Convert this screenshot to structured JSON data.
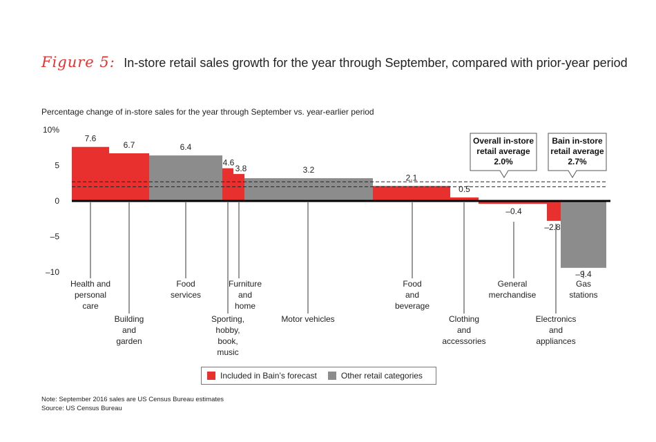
{
  "figure": {
    "label": "Figure 5:",
    "title": "In-store retail sales growth for the year through September, compared with prior-year period"
  },
  "subtitle": "Percentage change of in-store sales for the year through September vs. year-earlier period",
  "colors": {
    "forecast": "#e8312f",
    "other": "#8c8c8c",
    "axis": "#000000",
    "text": "#222222"
  },
  "chart_data": {
    "type": "bar",
    "ylim": [
      -10,
      10
    ],
    "yticks": [
      10,
      5,
      0,
      -5,
      -10
    ],
    "ytick_labels": [
      "10%",
      "5",
      "0",
      "–5",
      "–10"
    ],
    "categories": [
      {
        "name": "Health and personal care",
        "label_lines": [
          "Health and",
          "personal",
          "care"
        ],
        "value": 7.6,
        "value_label": "7.6",
        "group": "forecast"
      },
      {
        "name": "Building and garden",
        "label_lines": [
          "Building",
          "and",
          "garden"
        ],
        "value": 6.7,
        "value_label": "6.7",
        "group": "forecast"
      },
      {
        "name": "Food services",
        "label_lines": [
          "Food",
          "services"
        ],
        "value": 6.4,
        "value_label": "6.4",
        "group": "other"
      },
      {
        "name": "Sporting, hobby, book, music",
        "label_lines": [
          "Sporting,",
          "hobby,",
          "book,",
          "music"
        ],
        "value": 4.6,
        "value_label": "4.6",
        "group": "forecast"
      },
      {
        "name": "Furniture and home",
        "label_lines": [
          "Furniture",
          "and",
          "home"
        ],
        "value": 3.8,
        "value_label": "3.8",
        "group": "forecast"
      },
      {
        "name": "Motor vehicles",
        "label_lines": [
          "Motor vehicles"
        ],
        "value": 3.2,
        "value_label": "3.2",
        "group": "other"
      },
      {
        "name": "Food and beverage",
        "label_lines": [
          "Food",
          "and",
          "beverage"
        ],
        "value": 2.1,
        "value_label": "2.1",
        "group": "forecast"
      },
      {
        "name": "Clothing and accessories",
        "label_lines": [
          "Clothing",
          "and",
          "accessories"
        ],
        "value": 0.5,
        "value_label": "0.5",
        "group": "forecast"
      },
      {
        "name": "General merchandise",
        "label_lines": [
          "General",
          "merchandise"
        ],
        "value": -0.4,
        "value_label": "–0.4",
        "group": "forecast"
      },
      {
        "name": "Electronics and appliances",
        "label_lines": [
          "Electronics",
          "and",
          "appliances"
        ],
        "value": -2.8,
        "value_label": "–2.8",
        "group": "forecast"
      },
      {
        "name": "Gas stations",
        "label_lines": [
          "Gas",
          "stations"
        ],
        "value": -9.4,
        "value_label": "–9.4",
        "group": "other"
      }
    ],
    "reference_lines": [
      {
        "name": "Overall in-store retail average",
        "value": 2.0,
        "label_lines": [
          "Overall in-store",
          "retail average",
          "2.0%"
        ]
      },
      {
        "name": "Bain in-store retail average",
        "value": 2.7,
        "label_lines": [
          "Bain in-store",
          "retail average",
          "2.7%"
        ]
      }
    ],
    "legend": [
      {
        "label": "Included in Bain’s forecast",
        "group": "forecast"
      },
      {
        "label": "Other retail categories",
        "group": "other"
      }
    ]
  },
  "notes": {
    "note": "Note: September 2016 sales are US Census Bureau estimates",
    "source": "Source: US Census Bureau"
  }
}
